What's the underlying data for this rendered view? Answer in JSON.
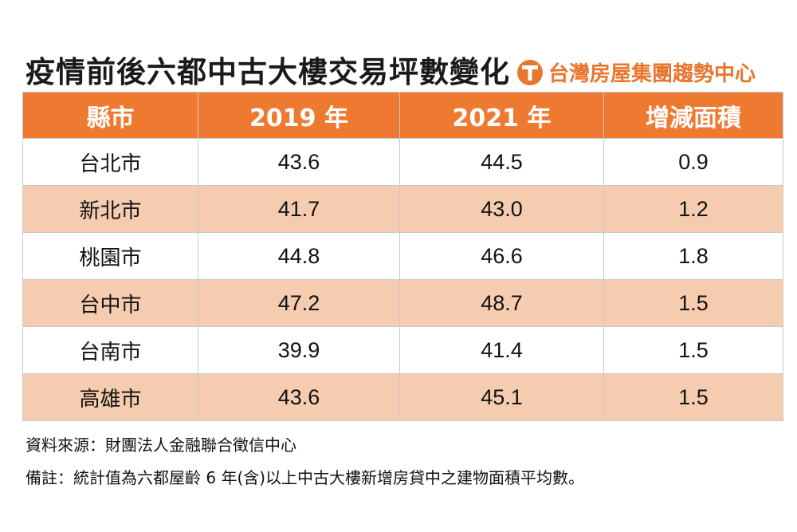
{
  "title": "疫情前後六都中古大樓交易坪數變化",
  "brand": {
    "name": "台灣房屋集團趨勢中心",
    "logo_icon": "t-logo-icon",
    "color": "#e8762d"
  },
  "colors": {
    "header_bg": "#ee7a32",
    "header_text": "#ffffff",
    "row_alt_bg": "#f6ccb0",
    "row_bg": "#ffffff"
  },
  "chart_data": {
    "type": "table",
    "columns": [
      "縣市",
      "2019 年",
      "2021 年",
      "增減面積"
    ],
    "rows": [
      [
        "台北市",
        "43.6",
        "44.5",
        "0.9"
      ],
      [
        "新北市",
        "41.7",
        "43.0",
        "1.2"
      ],
      [
        "桃園市",
        "44.8",
        "46.6",
        "1.8"
      ],
      [
        "台中市",
        "47.2",
        "48.7",
        "1.5"
      ],
      [
        "台南市",
        "39.9",
        "41.4",
        "1.5"
      ],
      [
        "高雄市",
        "43.6",
        "45.1",
        "1.5"
      ]
    ]
  },
  "notes": {
    "source": "資料來源：財團法人金融聯合徵信中心",
    "remark": "備註：統計值為六都屋齡 6 年(含)以上中古大樓新增房貸中之建物面積平均數。"
  }
}
